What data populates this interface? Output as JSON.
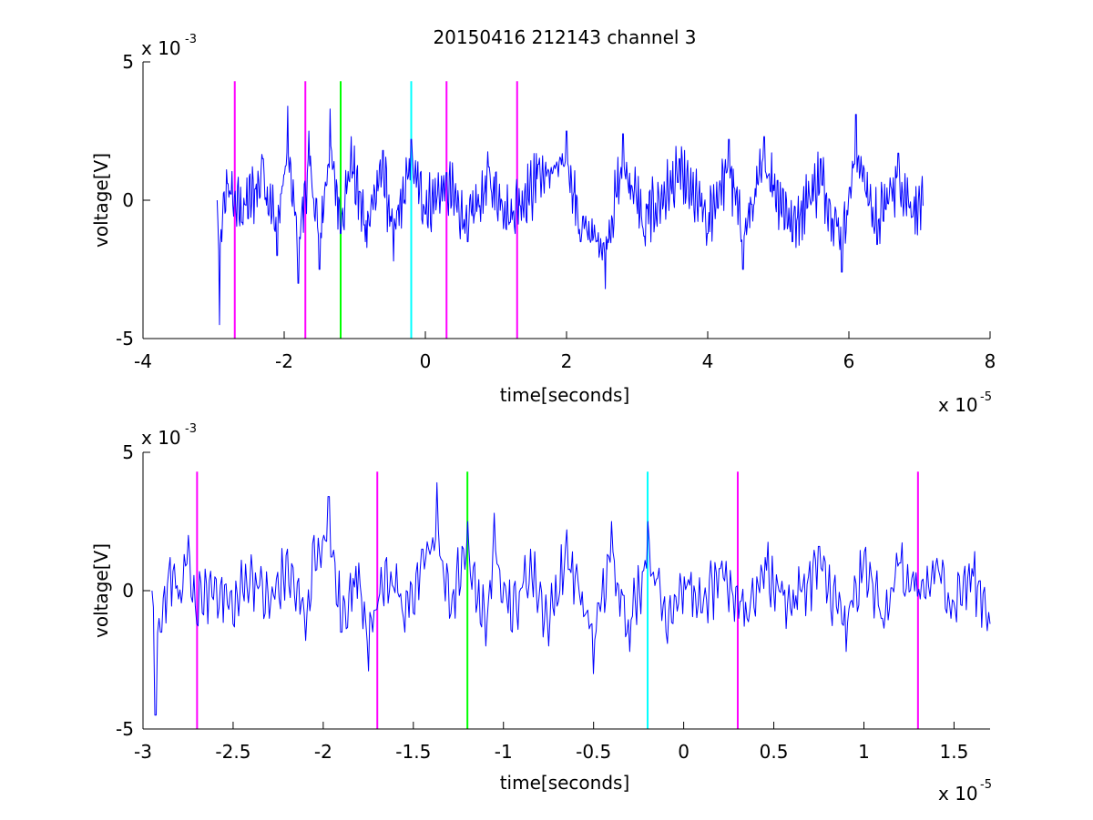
{
  "chart_data": [
    {
      "type": "line",
      "title": "20150416 212143 channel 3",
      "xlabel": "time[seconds]",
      "ylabel": "voltage[V]",
      "x_exponent_label": "x 10",
      "x_exponent": "-5",
      "y_exponent_label": "x 10",
      "y_exponent": "-3",
      "xlim": [
        -4,
        8
      ],
      "ylim": [
        -5,
        5
      ],
      "xticks": [
        -4,
        -2,
        0,
        2,
        4,
        6,
        8
      ],
      "xtick_labels": [
        "-4",
        "-2",
        "0",
        "2",
        "4",
        "6",
        "8"
      ],
      "yticks": [
        -5,
        0,
        5
      ],
      "ytick_labels": [
        "-5",
        "0",
        "5"
      ],
      "grid": false,
      "series": [
        {
          "color": "#0000ff",
          "x_range": [
            -2.95,
            7.05
          ],
          "envelope": [
            [
              -2.95,
              0.0
            ],
            [
              -2.92,
              -4.5
            ],
            [
              -2.88,
              -1.5
            ],
            [
              -2.8,
              0.6
            ],
            [
              -2.6,
              -0.8
            ],
            [
              -2.3,
              1.5
            ],
            [
              -2.1,
              -2.0
            ],
            [
              -1.95,
              3.4
            ],
            [
              -1.8,
              -3.0
            ],
            [
              -1.65,
              2.5
            ],
            [
              -1.5,
              -2.5
            ],
            [
              -1.35,
              3.3
            ],
            [
              -1.2,
              -1.2
            ],
            [
              -1.05,
              2.3
            ],
            [
              -0.85,
              -1.5
            ],
            [
              -0.6,
              1.8
            ],
            [
              -0.45,
              -2.2
            ],
            [
              -0.2,
              2.2
            ],
            [
              0.0,
              -0.5
            ],
            [
              0.3,
              1.0
            ],
            [
              0.6,
              -1.5
            ],
            [
              0.9,
              1.2
            ],
            [
              1.2,
              -0.8
            ],
            [
              1.6,
              1.3
            ],
            [
              2.0,
              2.5
            ],
            [
              2.2,
              -1.5
            ],
            [
              2.55,
              -3.2
            ],
            [
              2.8,
              2.4
            ],
            [
              3.1,
              -1.3
            ],
            [
              3.6,
              1.5
            ],
            [
              4.0,
              -1.2
            ],
            [
              4.3,
              2.2
            ],
            [
              4.5,
              -2.5
            ],
            [
              4.8,
              2.3
            ],
            [
              5.2,
              -1.5
            ],
            [
              5.6,
              1.5
            ],
            [
              5.9,
              -2.6
            ],
            [
              6.1,
              3.1
            ],
            [
              6.4,
              -1.6
            ],
            [
              6.7,
              1.7
            ],
            [
              6.9,
              -0.6
            ],
            [
              7.05,
              -0.2
            ]
          ]
        }
      ],
      "vlines": [
        {
          "x": -2.7,
          "color": "#ff00ff"
        },
        {
          "x": -1.7,
          "color": "#ff00ff"
        },
        {
          "x": -1.2,
          "color": "#00ff00"
        },
        {
          "x": -0.2,
          "color": "#00ffff"
        },
        {
          "x": 0.3,
          "color": "#ff00ff"
        },
        {
          "x": 1.3,
          "color": "#ff00ff"
        }
      ],
      "vline_ylim": [
        -5,
        4.3
      ]
    },
    {
      "type": "line",
      "title": "",
      "xlabel": "time[seconds]",
      "ylabel": "voltage[V]",
      "x_exponent_label": "x 10",
      "x_exponent": "-5",
      "y_exponent_label": "x 10",
      "y_exponent": "-3",
      "xlim": [
        -3.0,
        1.7
      ],
      "ylim": [
        -5,
        5
      ],
      "xticks": [
        -3,
        -2.5,
        -2,
        -1.5,
        -1,
        -0.5,
        0,
        0.5,
        1,
        1.5
      ],
      "xtick_labels": [
        "-3",
        "-2.5",
        "-2",
        "-1.5",
        "-1",
        "-0.5",
        "0",
        "0.5",
        "1",
        "1.5"
      ],
      "yticks": [
        -5,
        0,
        5
      ],
      "ytick_labels": [
        "-5",
        "0",
        "5"
      ],
      "grid": false,
      "series": [
        {
          "color": "#0000ff",
          "x_range": [
            -2.95,
            1.7
          ],
          "envelope": [
            [
              -2.95,
              0.0
            ],
            [
              -2.93,
              -4.5
            ],
            [
              -2.9,
              -1.5
            ],
            [
              -2.85,
              1.2
            ],
            [
              -2.8,
              -0.3
            ],
            [
              -2.75,
              2.0
            ],
            [
              -2.7,
              -1.2
            ],
            [
              -2.6,
              0.5
            ],
            [
              -2.5,
              -1.2
            ],
            [
              -2.4,
              1.3
            ],
            [
              -2.3,
              -1.0
            ],
            [
              -2.2,
              1.5
            ],
            [
              -2.1,
              -1.8
            ],
            [
              -2.05,
              2.0
            ],
            [
              -1.97,
              3.4
            ],
            [
              -1.9,
              -1.5
            ],
            [
              -1.8,
              1.0
            ],
            [
              -1.75,
              -2.9
            ],
            [
              -1.65,
              1.2
            ],
            [
              -1.55,
              -1.5
            ],
            [
              -1.45,
              1.5
            ],
            [
              -1.37,
              3.9
            ],
            [
              -1.3,
              -1.0
            ],
            [
              -1.2,
              2.5
            ],
            [
              -1.1,
              -2.0
            ],
            [
              -1.05,
              2.8
            ],
            [
              -0.95,
              -1.5
            ],
            [
              -0.85,
              1.5
            ],
            [
              -0.75,
              -2.0
            ],
            [
              -0.65,
              2.2
            ],
            [
              -0.5,
              -3.0
            ],
            [
              -0.4,
              2.5
            ],
            [
              -0.3,
              -2.2
            ],
            [
              -0.2,
              2.5
            ],
            [
              -0.1,
              -1.5
            ],
            [
              0.0,
              0.5
            ],
            [
              0.1,
              -0.8
            ],
            [
              0.2,
              0.8
            ],
            [
              0.35,
              -1.0
            ],
            [
              0.45,
              1.2
            ],
            [
              0.6,
              -0.9
            ],
            [
              0.75,
              1.6
            ],
            [
              0.9,
              -2.2
            ],
            [
              1.0,
              1.4
            ],
            [
              1.1,
              -1.0
            ],
            [
              1.2,
              1.0
            ],
            [
              1.3,
              -0.2
            ],
            [
              1.4,
              0.9
            ],
            [
              1.5,
              -0.4
            ],
            [
              1.6,
              0.8
            ],
            [
              1.7,
              -1.2
            ]
          ]
        }
      ],
      "vlines": [
        {
          "x": -2.7,
          "color": "#ff00ff"
        },
        {
          "x": -1.7,
          "color": "#ff00ff"
        },
        {
          "x": -1.2,
          "color": "#00ff00"
        },
        {
          "x": -0.2,
          "color": "#00ffff"
        },
        {
          "x": 0.3,
          "color": "#ff00ff"
        },
        {
          "x": 1.3,
          "color": "#ff00ff"
        }
      ],
      "vline_ylim": [
        -5,
        4.3
      ]
    }
  ]
}
